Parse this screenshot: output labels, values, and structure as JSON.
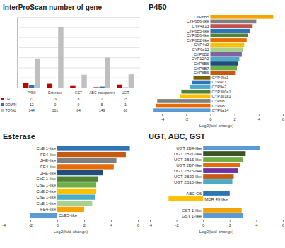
{
  "chart_data": [
    {
      "type": "bar",
      "title": "InterProScan number of gene",
      "categories": [
        "P450",
        "Esterase",
        "GST",
        "ABC transporter",
        "UGT"
      ],
      "series": [
        {
          "name": "UP",
          "color": "#c00000",
          "values": [
            21,
            19,
            8,
            2,
            15
          ]
        },
        {
          "name": "DOWN",
          "color": "#2e75b6",
          "values": [
            12,
            0,
            0,
            5,
            1
          ]
        },
        {
          "name": "TOTAL",
          "color": "#bfbfbf",
          "values": [
            144,
            301,
            64,
            149,
            66
          ]
        }
      ],
      "ylim": [
        0,
        350
      ],
      "yticks": [
        0,
        50,
        100,
        150,
        200,
        250,
        300,
        350
      ],
      "grid": true,
      "tick_labels": "x"
    },
    {
      "type": "bar",
      "orientation": "horizontal",
      "title": "P450",
      "categories": [
        "CYP6B5",
        "CYP6B6-like",
        "CYP4a13",
        "CYP6B5-like",
        "CYP6B6-like",
        "CYP6B2-like",
        "CYP4d2",
        "CYP6a13",
        "CYP6B2",
        "CYP12A2",
        "CYP6B6",
        "CYP6B7",
        "CYP6B6",
        "CYP49a1",
        "CYP4c1",
        "CYP9e2",
        "CYP300a1",
        "CYP301a1",
        "CYP6B1",
        "CYP6B1",
        "CYP6a14"
      ],
      "values": [
        5.2,
        3.8,
        3.5,
        3.3,
        3.1,
        3.0,
        2.8,
        2.7,
        2.6,
        2.4,
        2.3,
        2.2,
        2.1,
        -1.4,
        -1.5,
        -1.7,
        -2.4,
        -2.5,
        -4.4,
        -4.5,
        -4.7
      ],
      "colors": [
        "#f4a300",
        "#7f7f7f",
        "#c0504d",
        "#2e75b6",
        "#548235",
        "#e46c0a",
        "#ffc000",
        "#a9d18e",
        "#8064a2",
        "#4bacc6",
        "#1f4e79",
        "#70ad47",
        "#c55a11",
        "#7f6000",
        "#2e75b6",
        "#4bacc6",
        "#548235",
        "#ffc000",
        "#7f7f7f",
        "#e46c0a",
        "#5b9bd5"
      ],
      "xlabel": "Log2(fold-change)",
      "xlim": [
        -5,
        6
      ],
      "xticks": [
        -4,
        -2,
        0,
        2,
        4,
        6
      ]
    },
    {
      "type": "bar",
      "orientation": "horizontal",
      "title": "Esterase",
      "categories": [
        "CbE 1-like",
        "FE4-like",
        "JHE-like",
        "FE4-like",
        "JHE-like",
        "CbE 1-like",
        "CbE 1-like",
        "CbE 2-like",
        "CbE 1-like",
        "CbE 1-like",
        "FE4-like",
        "CbE5-like"
      ],
      "values": [
        5.4,
        5.1,
        4.4,
        4.2,
        3.4,
        3.0,
        2.9,
        2.9,
        2.8,
        2.6,
        2.0,
        -2.0
      ],
      "colors": [
        "#2e75b6",
        "#c55a11",
        "#7f7f7f",
        "#e46c0a",
        "#1f4e79",
        "#548235",
        "#70ad47",
        "#ffc000",
        "#4bacc6",
        "#a9d18e",
        "#f4a300",
        "#5b9bd5"
      ],
      "xlabel": "Log2(fold-change)",
      "xlim": [
        -4,
        6
      ],
      "xticks": [
        -4,
        -2,
        0,
        2,
        4,
        6
      ]
    },
    {
      "type": "bar",
      "orientation": "horizontal",
      "title": "UGT, ABC, GST",
      "categories": [
        "UGT 2B4-like",
        "UGT 2B31-like",
        "UGT 2B15-like",
        "UGT 2B7-like",
        "UGT 2B15-like",
        "UGT 2B33-like",
        "UGT 2B10-like",
        null,
        "ABC G6",
        "MDR 49-like",
        null,
        "GST 1-like",
        "GST 1-like"
      ],
      "values": [
        4.3,
        3.2,
        3.0,
        2.8,
        2.6,
        2.3,
        2.2,
        null,
        2.0,
        -2.6,
        null,
        2.9,
        3.0
      ],
      "colors": [
        "#5b9bd5",
        "#375623",
        "#70ad47",
        "#e46c0a",
        "#7030a0",
        "#c55a11",
        "#4bacc6",
        "#ffffff",
        "#2e75b6",
        "#ffc000",
        "#ffffff",
        "#f4a300",
        "#5b9bd5"
      ],
      "xlabel": "Log2(fold-change)",
      "xlim": [
        -4,
        6
      ],
      "xticks": [
        -4,
        -2,
        0,
        2,
        4,
        6
      ]
    }
  ]
}
